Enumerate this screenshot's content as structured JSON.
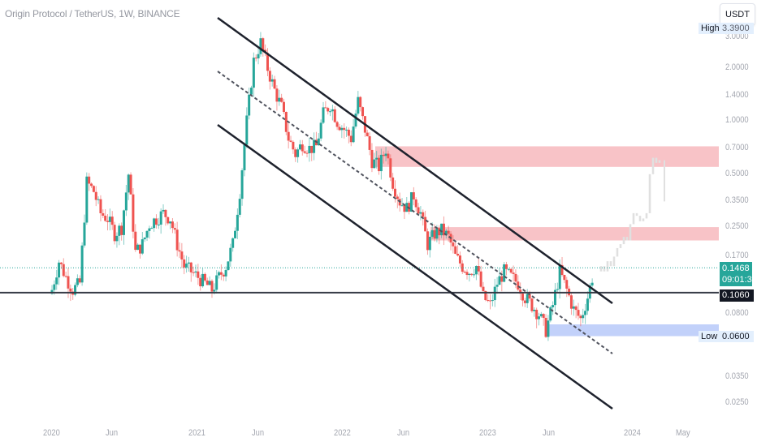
{
  "header": {
    "title": "Origin Protocol / TetherUS, 1W, BINANCE"
  },
  "scale": {
    "unit_button": "USDT"
  },
  "markers": {
    "high_label": "High",
    "high_value": "3.3900",
    "low_label": "Low",
    "low_value": "0.0600",
    "current_price": "0.1468",
    "countdown": "09:01:37",
    "level_price": "0.1060"
  },
  "colors": {
    "up": "#26a69a",
    "down": "#ef5350",
    "resistance_zone": "#f7b9bd",
    "support_zone": "#b7c9f9",
    "projection": "#e0e0e0",
    "trendline": "#1e222d"
  },
  "chart_data": {
    "type": "candlestick",
    "title": "Origin Protocol / TetherUS, 1W, BINANCE",
    "scale": "log",
    "y_ticks": [
      "3.0000",
      "2.0000",
      "1.4000",
      "1.0000",
      "0.7000",
      "0.5000",
      "0.3500",
      "0.2500",
      "0.1700",
      "0.0800",
      "0.0350",
      "0.0250"
    ],
    "x_ticks": [
      "2020",
      "Jun",
      "2021",
      "Jun",
      "2022",
      "Jun",
      "2023",
      "Jun",
      "2024",
      "May"
    ],
    "ylim": [
      0.02,
      3.8
    ],
    "zones": [
      {
        "name": "resistance-upper",
        "from": 0.55,
        "to": 0.72,
        "color": "#f7b9bd"
      },
      {
        "name": "resistance-lower",
        "from": 0.21,
        "to": 0.25,
        "color": "#f7b9bd"
      },
      {
        "name": "support",
        "from": 0.06,
        "to": 0.07,
        "color": "#b7c9f9"
      }
    ],
    "horizontal_levels": [
      {
        "price": 0.106,
        "style": "solid"
      },
      {
        "price": 0.1468,
        "style": "dotted"
      }
    ],
    "channel": "descending channel with dotted midline from 2021 high to 2023",
    "closes_approx": [
      0.11,
      0.16,
      0.13,
      0.11,
      0.12,
      0.45,
      0.4,
      0.3,
      0.28,
      0.23,
      0.25,
      0.5,
      0.18,
      0.2,
      0.26,
      0.28,
      0.3,
      0.28,
      0.2,
      0.15,
      0.14,
      0.13,
      0.12,
      0.11,
      0.13,
      0.15,
      0.2,
      0.4,
      1.0,
      2.2,
      2.8,
      2.0,
      1.5,
      1.2,
      0.8,
      0.65,
      0.75,
      0.7,
      0.72,
      1.1,
      1.25,
      1.0,
      0.9,
      0.8,
      1.3,
      0.9,
      0.6,
      0.55,
      0.7,
      0.45,
      0.35,
      0.32,
      0.38,
      0.3,
      0.2,
      0.23,
      0.24,
      0.22,
      0.17,
      0.15,
      0.14,
      0.15,
      0.1,
      0.09,
      0.12,
      0.14,
      0.13,
      0.12,
      0.1,
      0.09,
      0.08,
      0.065,
      0.09,
      0.14,
      0.11,
      0.085,
      0.075,
      0.1,
      0.1468
    ]
  }
}
